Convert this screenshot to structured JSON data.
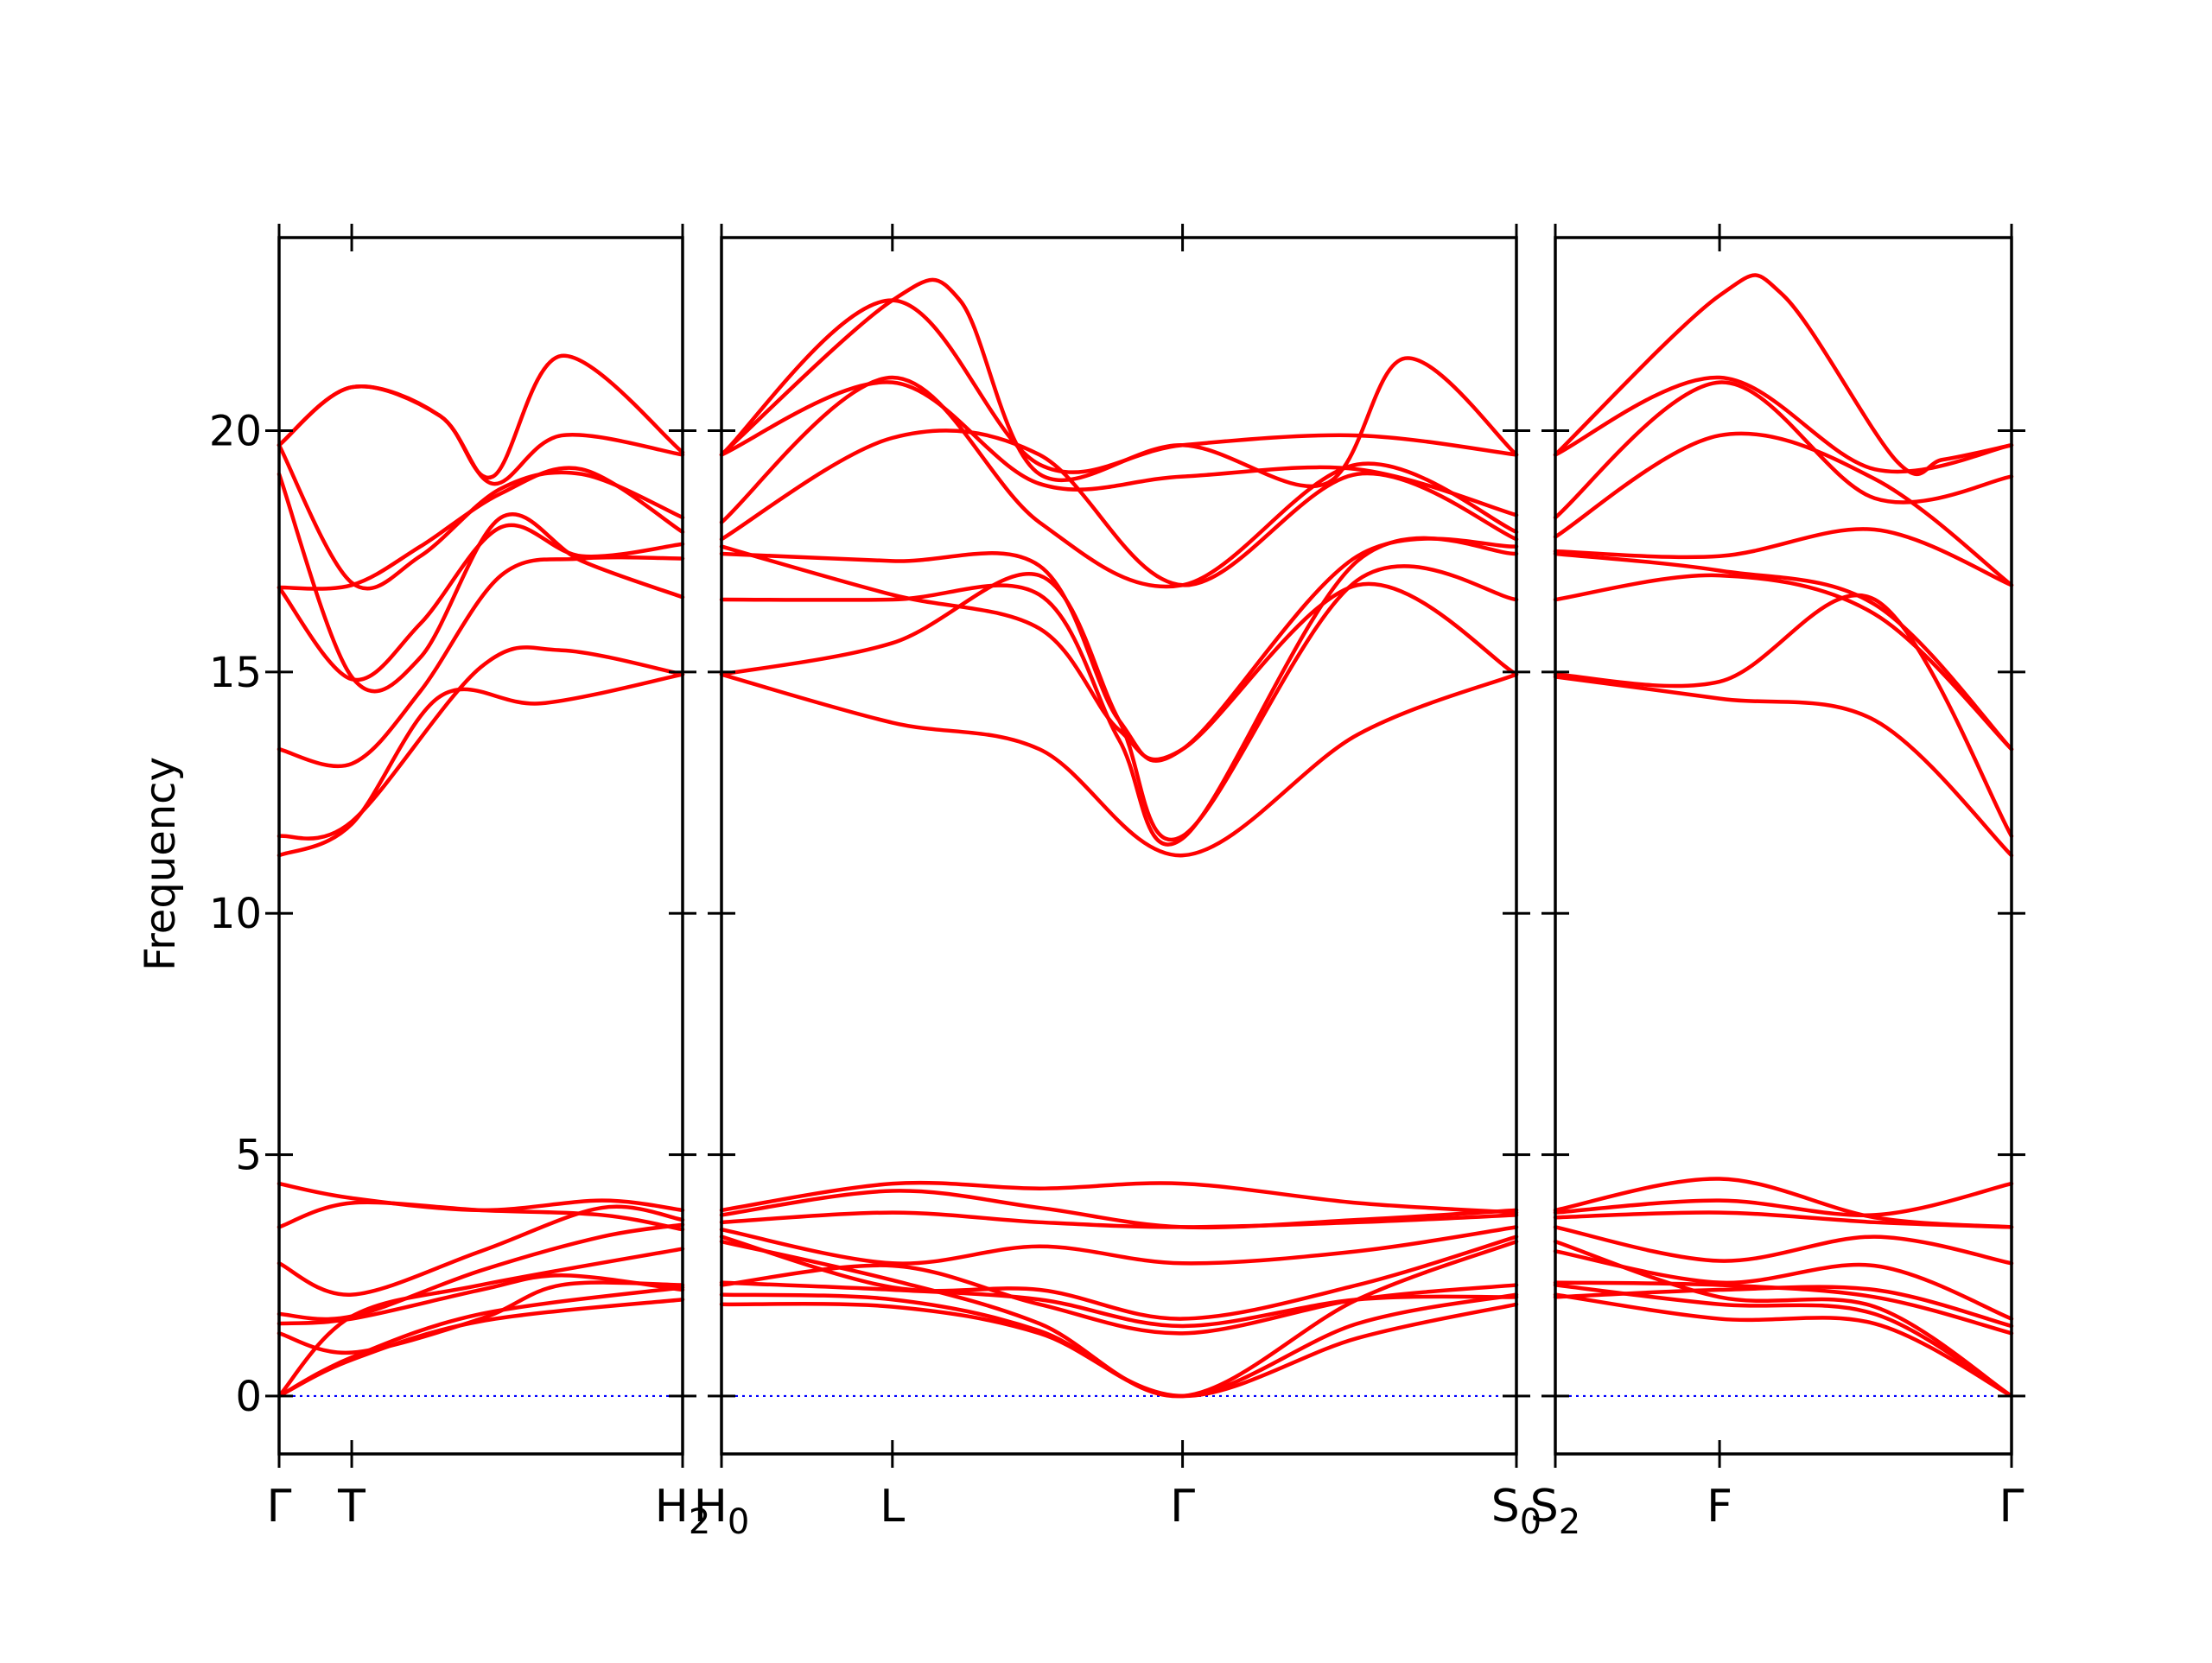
{
  "chart_data": {
    "type": "line",
    "ylabel": "Frequency",
    "ylim": [
      -1.2,
      24.0
    ],
    "yticks": [
      0,
      5,
      10,
      15,
      20
    ],
    "grid": false,
    "colors": {
      "bands": "#ff0000",
      "zero_line": "#0000ff",
      "axes": "#000000"
    },
    "panels": [
      {
        "id": "panel-1",
        "x_range": [
          0,
          1
        ],
        "ticks": [
          {
            "x": 0.0,
            "label": "Γ"
          },
          {
            "x": 0.18,
            "label": "T"
          },
          {
            "x": 1.0,
            "label": "H",
            "subscript": "2"
          }
        ],
        "bands": [
          {
            "x": [
              0,
              0.18,
              0.5,
              1.0
            ],
            "y": [
              0.0,
              0.75,
              1.55,
              2.0
            ]
          },
          {
            "x": [
              0,
              0.18,
              0.5,
              1.0
            ],
            "y": [
              0.0,
              0.8,
              1.7,
              2.25
            ]
          },
          {
            "x": [
              0,
              0.18,
              0.5,
              1.0
            ],
            "y": [
              0.0,
              1.65,
              2.3,
              3.05
            ]
          },
          {
            "x": [
              0,
              0.18,
              0.5,
              0.7,
              1.0
            ],
            "y": [
              1.3,
              0.9,
              1.6,
              2.3,
              2.3
            ]
          },
          {
            "x": [
              0,
              0.18,
              0.5,
              0.7,
              1.0
            ],
            "y": [
              1.5,
              1.6,
              2.2,
              2.5,
              2.2
            ]
          },
          {
            "x": [
              0,
              0.18,
              0.5,
              0.8,
              1.0
            ],
            "y": [
              1.7,
              1.65,
              2.6,
              3.3,
              3.55
            ]
          },
          {
            "x": [
              0,
              0.18,
              0.5,
              0.8,
              1.0
            ],
            "y": [
              2.75,
              2.1,
              3.0,
              3.9,
              3.65
            ]
          },
          {
            "x": [
              0,
              0.18,
              0.5,
              0.8,
              1.0
            ],
            "y": [
              3.5,
              4.0,
              3.85,
              3.75,
              3.45
            ]
          },
          {
            "x": [
              0,
              0.18,
              0.5,
              0.8,
              1.0
            ],
            "y": [
              4.4,
              4.1,
              3.85,
              4.05,
              3.85
            ]
          },
          {
            "x": [
              0,
              0.18,
              0.4,
              0.65,
              1.0
            ],
            "y": [
              11.2,
              11.85,
              14.5,
              14.35,
              14.95
            ]
          },
          {
            "x": [
              0,
              0.18,
              0.5,
              0.7,
              1.0
            ],
            "y": [
              11.6,
              11.9,
              15.1,
              15.45,
              14.95
            ]
          },
          {
            "x": [
              0,
              0.18,
              0.35,
              0.55,
              0.75,
              1.0
            ],
            "y": [
              13.4,
              13.1,
              14.6,
              17.0,
              17.35,
              17.35
            ]
          },
          {
            "x": [
              0,
              0.18,
              0.35,
              0.55,
              0.75,
              1.0
            ],
            "y": [
              19.1,
              14.9,
              15.3,
              18.2,
              17.3,
              16.55
            ]
          },
          {
            "x": [
              0,
              0.18,
              0.35,
              0.55,
              0.75,
              1.0
            ],
            "y": [
              16.75,
              14.85,
              16.0,
              18.0,
              17.4,
              17.65
            ]
          },
          {
            "x": [
              0,
              0.18,
              0.35,
              0.55,
              0.75,
              1.0
            ],
            "y": [
              16.75,
              16.8,
              17.6,
              18.7,
              19.2,
              17.9
            ]
          },
          {
            "x": [
              0,
              0.18,
              0.35,
              0.55,
              0.75,
              1.0
            ],
            "y": [
              19.7,
              16.85,
              17.4,
              18.8,
              19.1,
              18.2
            ]
          },
          {
            "x": [
              0,
              0.18,
              0.4,
              0.53,
              0.7,
              1.0
            ],
            "y": [
              19.7,
              20.9,
              20.3,
              19.05,
              21.55,
              19.55
            ]
          },
          {
            "x": [
              0,
              0.18,
              0.4,
              0.53,
              0.7,
              1.0
            ],
            "y": [
              19.7,
              20.9,
              20.3,
              18.9,
              19.9,
              19.5
            ]
          }
        ]
      },
      {
        "id": "panel-2",
        "x_range": [
          0,
          1
        ],
        "ticks": [
          {
            "x": 0.0,
            "label": "H",
            "subscript": "0"
          },
          {
            "x": 0.215,
            "label": "L"
          },
          {
            "x": 0.58,
            "label": "Γ"
          },
          {
            "x": 1.0,
            "label": "S",
            "subscript": "0"
          }
        ],
        "bands": [
          {
            "x": [
              0,
              0.215,
              0.4,
              0.58,
              0.8,
              1.0
            ],
            "y": [
              1.9,
              1.85,
              1.3,
              0.0,
              1.2,
              1.9
            ]
          },
          {
            "x": [
              0,
              0.215,
              0.4,
              0.58,
              0.8,
              1.0
            ],
            "y": [
              2.1,
              2.0,
              1.35,
              0.0,
              1.5,
              2.1
            ]
          },
          {
            "x": [
              0,
              0.215,
              0.4,
              0.58,
              0.8,
              1.0
            ],
            "y": [
              3.2,
              2.4,
              1.5,
              0.0,
              2.0,
              3.2
            ]
          },
          {
            "x": [
              0,
              0.215,
              0.4,
              0.58,
              0.8,
              1.0
            ],
            "y": [
              2.3,
              2.7,
              1.9,
              1.3,
              2.0,
              2.3
            ]
          },
          {
            "x": [
              0,
              0.215,
              0.4,
              0.58,
              0.8,
              1.0
            ],
            "y": [
              2.35,
              2.2,
              2.0,
              1.45,
              2.0,
              2.05
            ]
          },
          {
            "x": [
              0,
              0.215,
              0.4,
              0.58,
              0.8,
              1.0
            ],
            "y": [
              3.3,
              2.25,
              2.2,
              1.6,
              2.3,
              3.3
            ]
          },
          {
            "x": [
              0,
              0.215,
              0.4,
              0.58,
              0.8,
              1.0
            ],
            "y": [
              3.45,
              2.75,
              3.1,
              2.75,
              3.0,
              3.5
            ]
          },
          {
            "x": [
              0,
              0.215,
              0.4,
              0.58,
              0.8,
              1.0
            ],
            "y": [
              3.6,
              3.8,
              3.6,
              3.5,
              3.6,
              3.75
            ]
          },
          {
            "x": [
              0,
              0.215,
              0.4,
              0.58,
              0.8,
              1.0
            ],
            "y": [
              3.75,
              4.25,
              3.9,
              3.5,
              3.65,
              3.85
            ]
          },
          {
            "x": [
              0,
              0.215,
              0.4,
              0.58,
              0.8,
              1.0
            ],
            "y": [
              3.85,
              4.4,
              4.3,
              4.4,
              4.0,
              3.8
            ]
          },
          {
            "x": [
              0,
              0.215,
              0.4,
              0.58,
              0.8,
              1.0
            ],
            "y": [
              14.95,
              13.95,
              13.4,
              11.2,
              13.7,
              14.95
            ]
          },
          {
            "x": [
              0,
              0.215,
              0.4,
              0.5,
              0.58,
              0.8,
              1.0
            ],
            "y": [
              14.95,
              15.6,
              17.0,
              14.0,
              11.6,
              16.9,
              16.5
            ]
          },
          {
            "x": [
              0,
              0.215,
              0.4,
              0.5,
              0.58,
              0.8,
              1.0
            ],
            "y": [
              16.5,
              16.5,
              16.6,
              13.6,
              11.55,
              17.3,
              17.45
            ]
          },
          {
            "x": [
              0,
              0.215,
              0.4,
              0.5,
              0.58,
              0.8,
              1.0
            ],
            "y": [
              17.45,
              17.3,
              17.2,
              14.0,
              13.4,
              17.4,
              17.6
            ]
          },
          {
            "x": [
              0,
              0.215,
              0.4,
              0.5,
              0.58,
              0.8,
              1.0
            ],
            "y": [
              17.6,
              16.6,
              15.9,
              13.8,
              13.4,
              16.8,
              14.95
            ]
          },
          {
            "x": [
              0,
              0.215,
              0.4,
              0.58,
              0.8,
              1.0
            ],
            "y": [
              17.75,
              19.85,
              19.5,
              16.8,
              19.1,
              17.75
            ]
          },
          {
            "x": [
              0,
              0.215,
              0.4,
              0.58,
              0.8,
              1.0
            ],
            "y": [
              18.1,
              21.1,
              18.1,
              16.8,
              19.3,
              17.9
            ]
          },
          {
            "x": [
              0,
              0.215,
              0.4,
              0.58,
              0.8,
              1.0
            ],
            "y": [
              19.5,
              21.0,
              18.9,
              19.05,
              19.2,
              18.25
            ]
          },
          {
            "x": [
              0,
              0.215,
              0.4,
              0.58,
              0.8,
              1.0
            ],
            "y": [
              19.5,
              22.7,
              19.3,
              19.7,
              19.9,
              19.5
            ]
          },
          {
            "x": [
              0,
              0.215,
              0.3,
              0.4,
              0.58,
              0.76,
              0.86,
              1.0
            ],
            "y": [
              19.5,
              22.7,
              22.7,
              19.1,
              19.7,
              18.9,
              21.5,
              19.5
            ]
          }
        ]
      },
      {
        "id": "panel-3",
        "x_range": [
          0,
          1
        ],
        "ticks": [
          {
            "x": 0.0,
            "label": "S",
            "subscript": "2"
          },
          {
            "x": 0.36,
            "label": "F"
          },
          {
            "x": 1.0,
            "label": "Γ"
          }
        ],
        "bands": [
          {
            "x": [
              0,
              0.36,
              0.7,
              1.0
            ],
            "y": [
              2.1,
              1.6,
              1.5,
              0.0
            ]
          },
          {
            "x": [
              0,
              0.36,
              0.7,
              1.0
            ],
            "y": [
              2.3,
              1.9,
              1.7,
              0.0
            ]
          },
          {
            "x": [
              0,
              0.36,
              0.7,
              1.0
            ],
            "y": [
              3.2,
              2.05,
              1.85,
              0.0
            ]
          },
          {
            "x": [
              0,
              0.36,
              0.7,
              1.0
            ],
            "y": [
              2.35,
              2.3,
              2.05,
              1.3
            ]
          },
          {
            "x": [
              0,
              0.36,
              0.7,
              1.0
            ],
            "y": [
              2.05,
              2.2,
              2.2,
              1.45
            ]
          },
          {
            "x": [
              0,
              0.36,
              0.7,
              1.0
            ],
            "y": [
              3.0,
              2.35,
              2.7,
              1.6
            ]
          },
          {
            "x": [
              0,
              0.36,
              0.7,
              1.0
            ],
            "y": [
              3.5,
              2.8,
              3.3,
              2.75
            ]
          },
          {
            "x": [
              0,
              0.36,
              0.7,
              1.0
            ],
            "y": [
              3.7,
              3.8,
              3.6,
              3.5
            ]
          },
          {
            "x": [
              0,
              0.36,
              0.7,
              1.0
            ],
            "y": [
              3.8,
              4.05,
              3.75,
              4.4
            ]
          },
          {
            "x": [
              0,
              0.36,
              0.7,
              1.0
            ],
            "y": [
              3.85,
              4.5,
              3.7,
              3.5
            ]
          },
          {
            "x": [
              0,
              0.36,
              0.7,
              1.0
            ],
            "y": [
              14.9,
              14.45,
              14.0,
              11.2
            ]
          },
          {
            "x": [
              0,
              0.36,
              0.7,
              1.0
            ],
            "y": [
              14.95,
              14.8,
              16.5,
              11.6
            ]
          },
          {
            "x": [
              0,
              0.36,
              0.7,
              1.0
            ],
            "y": [
              16.5,
              17.0,
              16.2,
              13.4
            ]
          },
          {
            "x": [
              0,
              0.36,
              0.7,
              1.0
            ],
            "y": [
              17.45,
              17.1,
              16.4,
              13.4
            ]
          },
          {
            "x": [
              0,
              0.36,
              0.7,
              1.0
            ],
            "y": [
              17.5,
              17.4,
              17.95,
              16.8
            ]
          },
          {
            "x": [
              0,
              0.36,
              0.7,
              1.0
            ],
            "y": [
              17.8,
              19.9,
              19.0,
              16.8
            ]
          },
          {
            "x": [
              0,
              0.36,
              0.7,
              1.0
            ],
            "y": [
              18.2,
              21.0,
              18.6,
              19.05
            ]
          },
          {
            "x": [
              0,
              0.36,
              0.7,
              1.0
            ],
            "y": [
              19.5,
              21.1,
              19.2,
              19.7
            ]
          },
          {
            "x": [
              0,
              0.36,
              0.5,
              0.75,
              0.85,
              1.0
            ],
            "y": [
              19.5,
              22.8,
              22.8,
              19.35,
              19.4,
              19.7
            ]
          }
        ]
      }
    ]
  }
}
